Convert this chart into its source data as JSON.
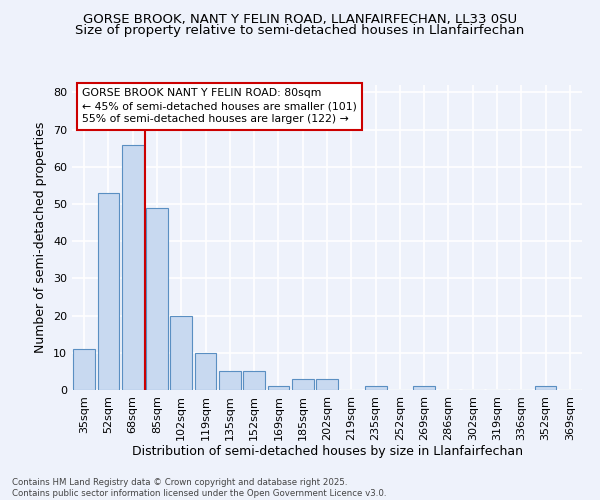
{
  "title": "GORSE BROOK, NANT Y FELIN ROAD, LLANFAIRFECHAN, LL33 0SU",
  "subtitle": "Size of property relative to semi-detached houses in Llanfairfechan",
  "xlabel": "Distribution of semi-detached houses by size in Llanfairfechan",
  "ylabel": "Number of semi-detached properties",
  "categories": [
    "35sqm",
    "52sqm",
    "68sqm",
    "85sqm",
    "102sqm",
    "119sqm",
    "135sqm",
    "152sqm",
    "169sqm",
    "185sqm",
    "202sqm",
    "219sqm",
    "235sqm",
    "252sqm",
    "269sqm",
    "286sqm",
    "302sqm",
    "319sqm",
    "336sqm",
    "352sqm",
    "369sqm"
  ],
  "values": [
    11,
    53,
    66,
    49,
    20,
    10,
    5,
    5,
    1,
    3,
    3,
    0,
    1,
    0,
    1,
    0,
    0,
    0,
    0,
    1,
    0
  ],
  "bar_color": "#c8d9f0",
  "bar_edge_color": "#5a8fc2",
  "vline_x": 2.5,
  "vline_color": "#cc0000",
  "annotation_title": "GORSE BROOK NANT Y FELIN ROAD: 80sqm",
  "annotation_line1": "← 45% of semi-detached houses are smaller (101)",
  "annotation_line2": "55% of semi-detached houses are larger (122) →",
  "annotation_box_color": "#ffffff",
  "annotation_box_edge": "#cc0000",
  "footer_line1": "Contains HM Land Registry data © Crown copyright and database right 2025.",
  "footer_line2": "Contains public sector information licensed under the Open Government Licence v3.0.",
  "ylim": [
    0,
    82
  ],
  "yticks": [
    0,
    10,
    20,
    30,
    40,
    50,
    60,
    70,
    80
  ],
  "background_color": "#eef2fb",
  "grid_color": "#ffffff",
  "title_fontsize": 9.5,
  "subtitle_fontsize": 9.5,
  "axis_label_fontsize": 9,
  "tick_fontsize": 8
}
